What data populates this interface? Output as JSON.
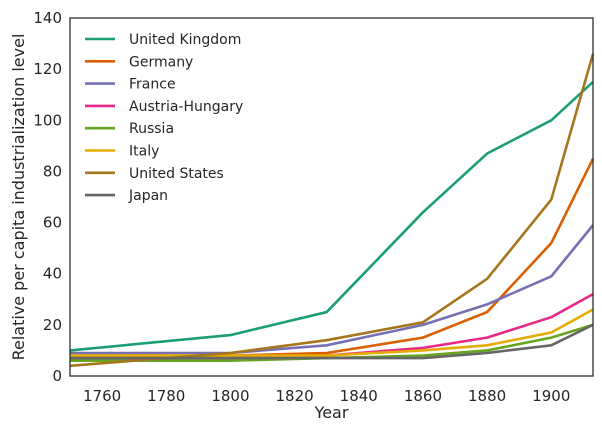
{
  "chart_data": {
    "type": "line",
    "title": "",
    "xlabel": "Year",
    "ylabel": "Relative per capita industrialization level",
    "xlim": [
      1750,
      1913
    ],
    "ylim": [
      0,
      140
    ],
    "xticks": [
      1760,
      1780,
      1800,
      1820,
      1840,
      1860,
      1880,
      1900
    ],
    "yticks": [
      0,
      20,
      40,
      60,
      80,
      100,
      120,
      140
    ],
    "grid": false,
    "legend_position": "top-left",
    "x": [
      1750,
      1800,
      1830,
      1860,
      1880,
      1900,
      1913
    ],
    "series": [
      {
        "name": "United Kingdom",
        "color": "#1b9e77",
        "values": [
          10,
          16,
          25,
          64,
          87,
          100,
          115
        ]
      },
      {
        "name": "Germany",
        "color": "#d95f02",
        "values": [
          8,
          8,
          9,
          15,
          25,
          52,
          85
        ]
      },
      {
        "name": "France",
        "color": "#7570b3",
        "values": [
          9,
          9,
          12,
          20,
          28,
          39,
          59
        ]
      },
      {
        "name": "Austria-Hungary",
        "color": "#e7298a",
        "values": [
          7,
          7,
          8,
          11,
          15,
          23,
          32
        ]
      },
      {
        "name": "Russia",
        "color": "#66a61e",
        "values": [
          6,
          6,
          7,
          8,
          10,
          15,
          20
        ]
      },
      {
        "name": "Italy",
        "color": "#e6ab02",
        "values": [
          8,
          8,
          8,
          10,
          12,
          17,
          26
        ]
      },
      {
        "name": "United States",
        "color": "#a6761d",
        "values": [
          4,
          9,
          14,
          21,
          38,
          69,
          126
        ]
      },
      {
        "name": "Japan",
        "color": "#666666",
        "values": [
          7,
          7,
          7,
          7,
          9,
          12,
          20
        ]
      }
    ]
  }
}
